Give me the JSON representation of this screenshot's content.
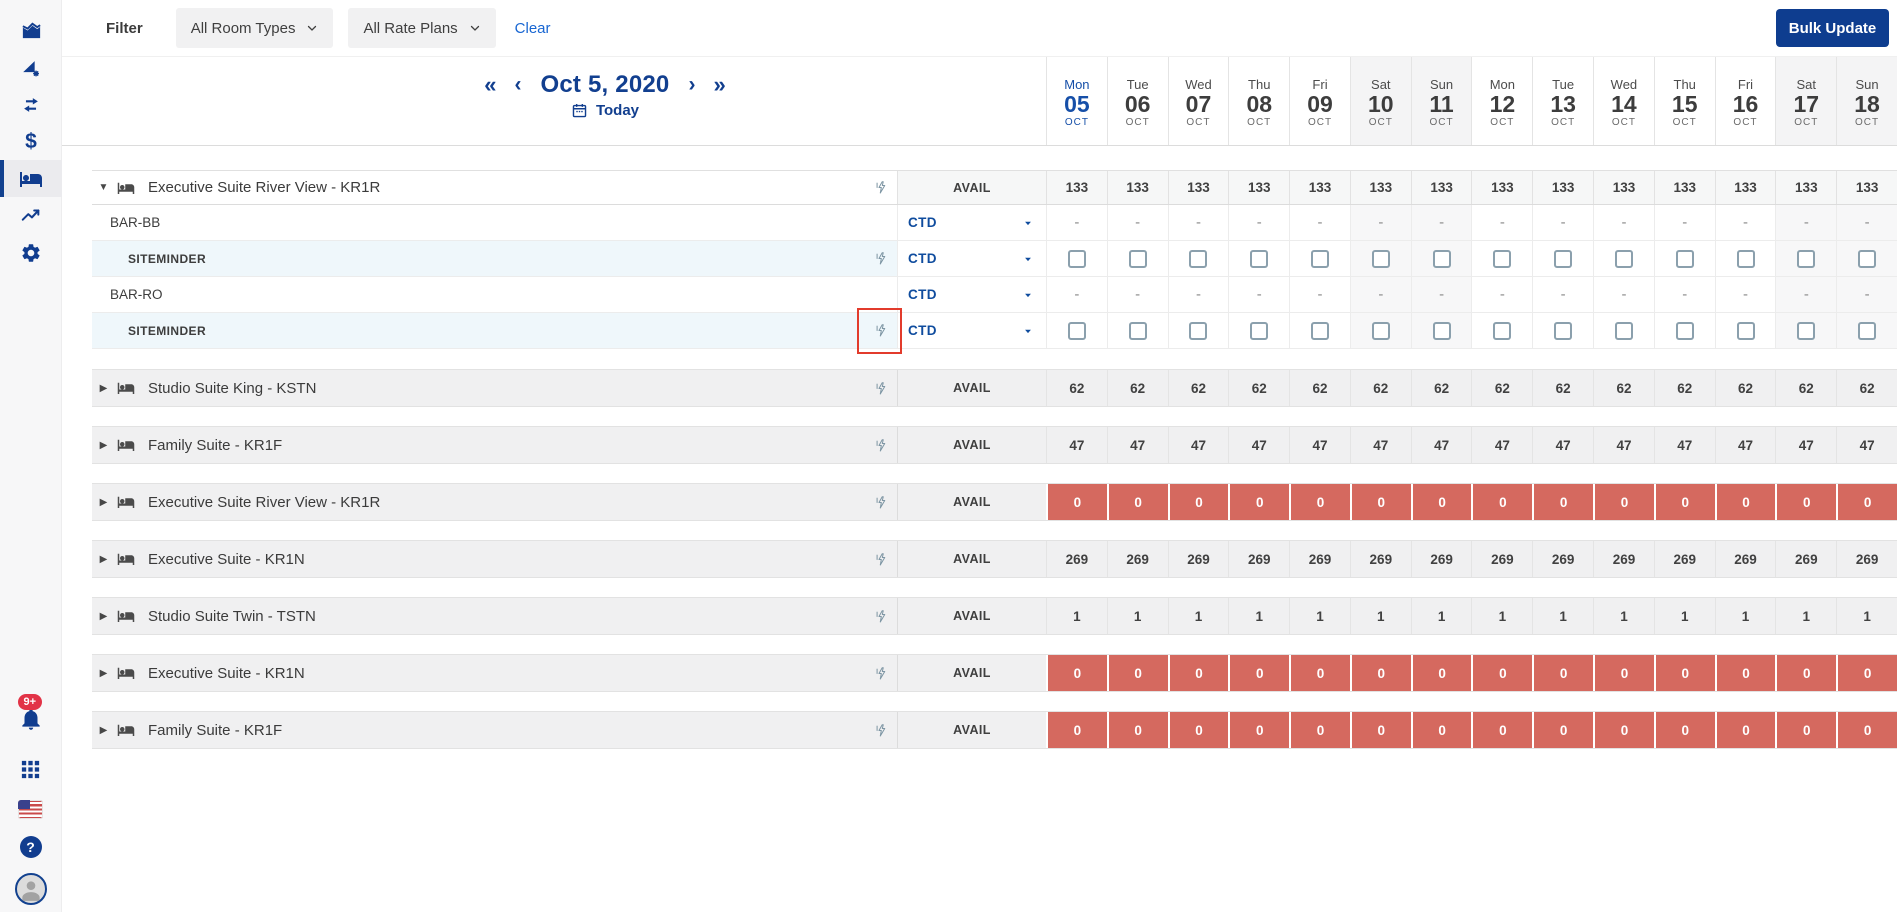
{
  "colors": {
    "primary_navy": "#11418f",
    "link_blue": "#1866d2",
    "today_blue": "#164fa8",
    "zero_red": "#d5695f",
    "highlight_red": "#e23b2c",
    "badge_red": "#e23347",
    "collapsed_row_gray": "#f0f0f1",
    "channel_row_blue": "#eff7fb",
    "weekend_gray": "#f4f4f5"
  },
  "sidebar": {
    "notification_badge": "9+",
    "items": [
      {
        "name": "dashboard",
        "icon": "area-chart-icon"
      },
      {
        "name": "rate-insights",
        "icon": "flag-gear-icon"
      },
      {
        "name": "distribution",
        "icon": "swap-arrows-icon"
      },
      {
        "name": "payments",
        "icon": "dollar-icon"
      },
      {
        "name": "inventory",
        "icon": "bed-icon",
        "selected": true
      },
      {
        "name": "performance",
        "icon": "trend-up-icon"
      },
      {
        "name": "settings",
        "icon": "gear-icon"
      }
    ],
    "bottom_items": [
      {
        "name": "notifications",
        "icon": "bell-icon",
        "badge": "9+"
      },
      {
        "name": "apps",
        "icon": "apps-grid-icon"
      },
      {
        "name": "language",
        "icon": "us-flag-icon"
      },
      {
        "name": "help",
        "icon": "help-icon"
      },
      {
        "name": "account",
        "icon": "avatar"
      }
    ]
  },
  "filter_bar": {
    "label": "Filter",
    "room_types_value": "All Room Types",
    "rate_plans_value": "All Rate Plans",
    "clear_label": "Clear",
    "bulk_update_label": "Bulk Update"
  },
  "date_nav": {
    "first": "«",
    "prev": "‹",
    "current_date": "Oct 5, 2020",
    "next": "›",
    "last": "»",
    "today_label": "Today"
  },
  "calendar_days": [
    {
      "dow": "Mon",
      "date": "05",
      "month": "OCT",
      "weekend": false,
      "today": true
    },
    {
      "dow": "Tue",
      "date": "06",
      "month": "OCT",
      "weekend": false,
      "today": false
    },
    {
      "dow": "Wed",
      "date": "07",
      "month": "OCT",
      "weekend": false,
      "today": false
    },
    {
      "dow": "Thu",
      "date": "08",
      "month": "OCT",
      "weekend": false,
      "today": false
    },
    {
      "dow": "Fri",
      "date": "09",
      "month": "OCT",
      "weekend": false,
      "today": false
    },
    {
      "dow": "Sat",
      "date": "10",
      "month": "OCT",
      "weekend": true,
      "today": false
    },
    {
      "dow": "Sun",
      "date": "11",
      "month": "OCT",
      "weekend": true,
      "today": false
    },
    {
      "dow": "Mon",
      "date": "12",
      "month": "OCT",
      "weekend": false,
      "today": false
    },
    {
      "dow": "Tue",
      "date": "13",
      "month": "OCT",
      "weekend": false,
      "today": false
    },
    {
      "dow": "Wed",
      "date": "14",
      "month": "OCT",
      "weekend": false,
      "today": false
    },
    {
      "dow": "Thu",
      "date": "15",
      "month": "OCT",
      "weekend": false,
      "today": false
    },
    {
      "dow": "Fri",
      "date": "16",
      "month": "OCT",
      "weekend": false,
      "today": false
    },
    {
      "dow": "Sat",
      "date": "17",
      "month": "OCT",
      "weekend": true,
      "today": false
    },
    {
      "dow": "Sun",
      "date": "18",
      "month": "OCT",
      "weekend": true,
      "today": false
    }
  ],
  "table": {
    "avail_label": "AVAIL",
    "dash": "-",
    "groups": [
      {
        "name": "Executive Suite River View - KR1R",
        "expanded": true,
        "zero": false,
        "avail_values": [
          "133",
          "133",
          "133",
          "133",
          "133",
          "133",
          "133",
          "133",
          "133",
          "133",
          "133",
          "133",
          "133",
          "133"
        ],
        "rate_plans": [
          {
            "name": "BAR-BB",
            "level": 1,
            "restriction": "CTD",
            "cell_type": "dash",
            "flash": false,
            "highlighted": false
          },
          {
            "name": "SITEMINDER",
            "level": 2,
            "restriction": "CTD",
            "cell_type": "checkbox",
            "flash": true,
            "highlighted": false
          },
          {
            "name": "BAR-RO",
            "level": 1,
            "restriction": "CTD",
            "cell_type": "dash",
            "flash": false,
            "highlighted": false
          },
          {
            "name": "SITEMINDER",
            "level": 2,
            "restriction": "CTD",
            "cell_type": "checkbox",
            "flash": true,
            "highlighted": true
          }
        ]
      },
      {
        "name": "Studio Suite King - KSTN",
        "expanded": false,
        "zero": false,
        "avail_values": [
          "62",
          "62",
          "62",
          "62",
          "62",
          "62",
          "62",
          "62",
          "62",
          "62",
          "62",
          "62",
          "62",
          "62"
        ]
      },
      {
        "name": "Family Suite - KR1F",
        "expanded": false,
        "zero": false,
        "avail_values": [
          "47",
          "47",
          "47",
          "47",
          "47",
          "47",
          "47",
          "47",
          "47",
          "47",
          "47",
          "47",
          "47",
          "47"
        ]
      },
      {
        "name": "Executive Suite River View - KR1R",
        "expanded": false,
        "zero": true,
        "avail_values": [
          "0",
          "0",
          "0",
          "0",
          "0",
          "0",
          "0",
          "0",
          "0",
          "0",
          "0",
          "0",
          "0",
          "0"
        ]
      },
      {
        "name": "Executive Suite - KR1N",
        "expanded": false,
        "zero": false,
        "avail_values": [
          "269",
          "269",
          "269",
          "269",
          "269",
          "269",
          "269",
          "269",
          "269",
          "269",
          "269",
          "269",
          "269",
          "269"
        ]
      },
      {
        "name": "Studio Suite Twin - TSTN",
        "expanded": false,
        "zero": false,
        "avail_values": [
          "1",
          "1",
          "1",
          "1",
          "1",
          "1",
          "1",
          "1",
          "1",
          "1",
          "1",
          "1",
          "1",
          "1"
        ]
      },
      {
        "name": "Executive Suite - KR1N",
        "expanded": false,
        "zero": true,
        "avail_values": [
          "0",
          "0",
          "0",
          "0",
          "0",
          "0",
          "0",
          "0",
          "0",
          "0",
          "0",
          "0",
          "0",
          "0"
        ]
      },
      {
        "name": "Family Suite - KR1F",
        "expanded": false,
        "zero": true,
        "avail_values": [
          "0",
          "0",
          "0",
          "0",
          "0",
          "0",
          "0",
          "0",
          "0",
          "0",
          "0",
          "0",
          "0",
          "0"
        ]
      }
    ]
  }
}
